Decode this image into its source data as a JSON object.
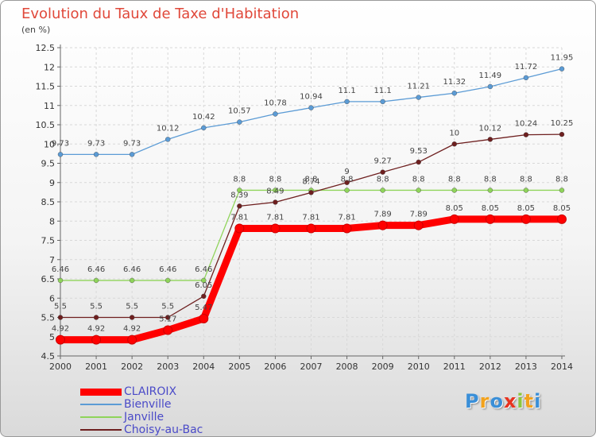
{
  "chart_data": {
    "type": "line",
    "title": "Evolution du Taux de Taxe d'Habitation",
    "ylabel": "(en %)",
    "x": [
      "2000",
      "2001",
      "2002",
      "2003",
      "2004",
      "2005",
      "2006",
      "2007",
      "2008",
      "2009",
      "2010",
      "2011",
      "2012",
      "2013",
      "2014"
    ],
    "ylim": [
      4.5,
      12.5
    ],
    "yticks": [
      4.5,
      5,
      5.5,
      6,
      6.5,
      7,
      7.5,
      8,
      8.5,
      9,
      9.5,
      10,
      10.5,
      11,
      11.5,
      12,
      12.5
    ],
    "grid": true,
    "series": [
      {
        "name": "CLAIROIX",
        "color": "#ff0000",
        "values": [
          4.92,
          4.92,
          4.92,
          5.17,
          5.47,
          7.81,
          7.81,
          7.81,
          7.81,
          7.89,
          7.89,
          8.05,
          8.05,
          8.05,
          8.05
        ]
      },
      {
        "name": "Bienville",
        "color": "#5b9bd5",
        "values": [
          9.73,
          9.73,
          9.73,
          10.12,
          10.42,
          10.57,
          10.78,
          10.94,
          11.1,
          11.1,
          11.21,
          11.32,
          11.49,
          11.72,
          11.95
        ]
      },
      {
        "name": "Janville",
        "color": "#8fd45a",
        "values": [
          6.46,
          6.46,
          6.46,
          6.46,
          6.46,
          8.8,
          8.8,
          8.8,
          8.8,
          8.8,
          8.8,
          8.8,
          8.8,
          8.8,
          8.8
        ]
      },
      {
        "name": "Choisy-au-Bac",
        "color": "#6e1f1f",
        "values": [
          5.5,
          5.5,
          5.5,
          5.5,
          6.05,
          8.39,
          8.49,
          8.74,
          9,
          9.27,
          9.53,
          10,
          10.12,
          10.24,
          10.25
        ]
      }
    ],
    "data_labels": [
      [
        "4.92",
        "4.92",
        "4.92",
        "5.17",
        "5.47",
        "7.81",
        "7.81",
        "7.81",
        "7.81",
        "7.89",
        "7.89",
        "8.05",
        "8.05",
        "8.05",
        "8.05"
      ],
      [
        "9.73",
        "9.73",
        "9.73",
        "10.12",
        "10.42",
        "10.57",
        "10.78",
        "10.94",
        "11.1",
        "11.1",
        "11.21",
        "11.32",
        "11.49",
        "11.72",
        "11.95"
      ],
      [
        "6.46",
        "6.46",
        "6.46",
        "6.46",
        "6.46",
        "8.8",
        "8.8",
        "8.8",
        "8.8",
        "8.8",
        "8.8",
        "8.8",
        "8.8",
        "8.8",
        "8.8"
      ],
      [
        "5.5",
        "5.5",
        "5.5",
        "5.5",
        "6.05",
        "8.39",
        "8.49",
        "8.74",
        "9",
        "9.27",
        "9.53",
        "10",
        "10.12",
        "10.24",
        "10.25"
      ]
    ],
    "legend_position": "bottom-left"
  },
  "logo": {
    "letters": [
      "P",
      "r",
      "o",
      "x",
      "i",
      "t",
      "i"
    ],
    "colors": [
      "#3a8fd8",
      "#f2a21d",
      "#3a8fd8",
      "#e8331f",
      "#8cc63f",
      "#f2a21d",
      "#3a8fd8"
    ]
  }
}
